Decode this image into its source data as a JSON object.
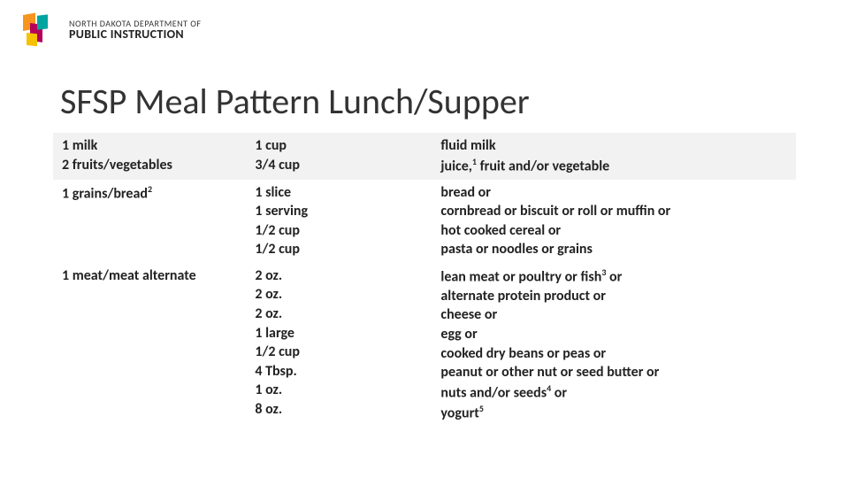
{
  "logo": {
    "line1": "NORTH DAKOTA DEPARTMENT OF",
    "line2": "PUBLIC INSTRUCTION",
    "colors": {
      "orange": "#f7941e",
      "magenta": "#b5005b",
      "teal": "#00a5a0",
      "yellow": "#f6c100"
    }
  },
  "title": "SFSP Meal Pattern Lunch/Supper",
  "table": {
    "background_shade": "#f2f2f2",
    "background_plain": "#ffffff",
    "text_color": "#222222",
    "font_size": 16,
    "col_widths_pct": [
      26,
      25,
      49
    ],
    "groups": [
      {
        "shaded": true,
        "col1": [
          {
            "text": "1 milk"
          },
          {
            "text": "2 fruits/vegetables"
          }
        ],
        "col2": [
          {
            "text": "1 cup"
          },
          {
            "text": "3/4 cup"
          }
        ],
        "col3": [
          {
            "text": "fluid milk"
          },
          {
            "text": "juice,",
            "sup": "1",
            "tail": " fruit and/or vegetable"
          }
        ]
      },
      {
        "shaded": false,
        "col1": [
          {
            "text": "1 grains/bread",
            "sup": "2"
          }
        ],
        "col2": [
          {
            "text": "1 slice"
          },
          {
            "text": "1 serving"
          },
          {
            "text": "1/2 cup"
          },
          {
            "text": "1/2 cup"
          }
        ],
        "col3": [
          {
            "text": "bread or"
          },
          {
            "text": "cornbread or biscuit or roll or muffin or"
          },
          {
            "text": "hot cooked cereal or"
          },
          {
            "text": "pasta or noodles or grains"
          }
        ]
      },
      {
        "shaded": false,
        "col1": [
          {
            "text": "1 meat/meat alternate"
          }
        ],
        "col2": [
          {
            "text": "2 oz."
          },
          {
            "text": "2 oz."
          },
          {
            "text": "2 oz."
          },
          {
            "text": "1 large"
          },
          {
            "text": "1/2 cup"
          },
          {
            "text": "4 Tbsp."
          },
          {
            "text": "1 oz."
          },
          {
            "text": "8 oz."
          }
        ],
        "col3": [
          {
            "text": "lean meat or poultry or fish",
            "sup": "3",
            "tail": " or"
          },
          {
            "text": "alternate protein product or"
          },
          {
            "text": "cheese or"
          },
          {
            "text": "egg or"
          },
          {
            "text": "cooked dry beans or peas or"
          },
          {
            "text": "peanut or other nut or seed butter or"
          },
          {
            "text": "nuts and/or seeds",
            "sup": "4",
            "tail": " or"
          },
          {
            "text": "yogurt",
            "sup": "5"
          }
        ]
      }
    ]
  }
}
